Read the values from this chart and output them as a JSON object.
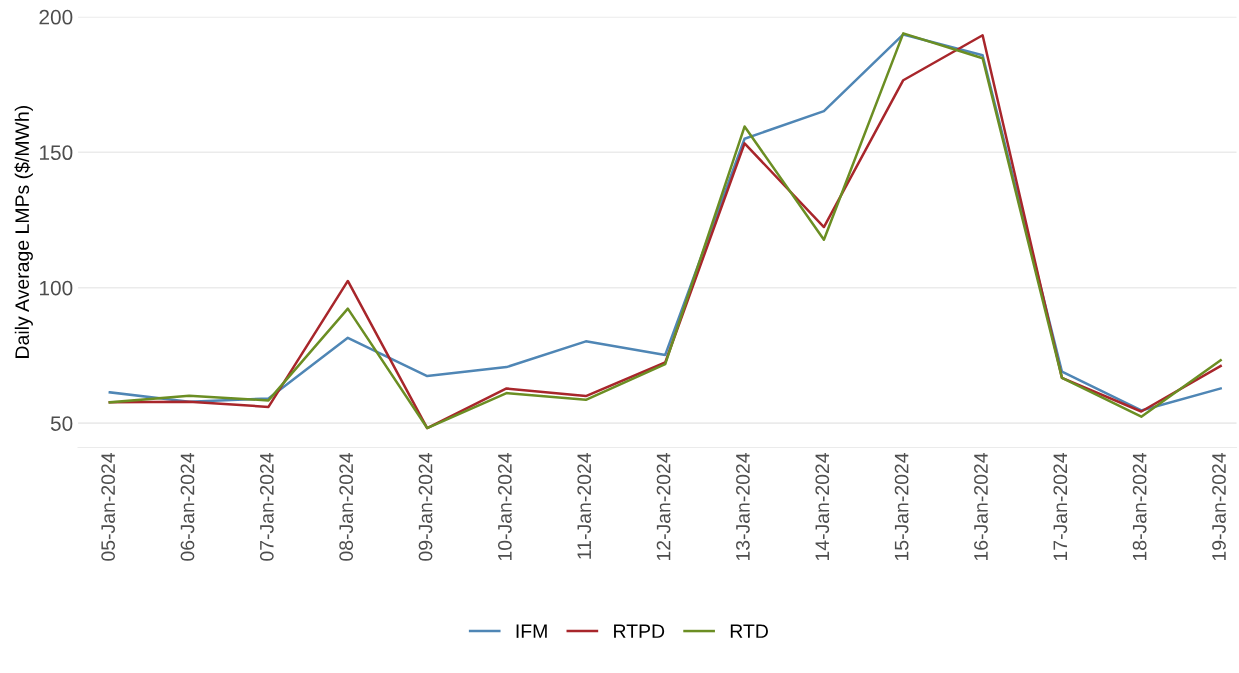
{
  "chart_data": {
    "type": "line",
    "ylabel": "Daily Average LMPs ($/MWh)",
    "categories": [
      "05-Jan-2024",
      "06-Jan-2024",
      "07-Jan-2024",
      "08-Jan-2024",
      "09-Jan-2024",
      "10-Jan-2024",
      "11-Jan-2024",
      "12-Jan-2024",
      "13-Jan-2024",
      "14-Jan-2024",
      "15-Jan-2024",
      "16-Jan-2024",
      "17-Jan-2024",
      "18-Jan-2024",
      "19-Jan-2024"
    ],
    "series": [
      {
        "name": "IFM",
        "color": "#4f86b5",
        "values": [
          61.4,
          57.9,
          59.1,
          81.5,
          67.4,
          70.7,
          80.2,
          75.2,
          155,
          165.2,
          193.5,
          185.8,
          69,
          54.7,
          62.8
        ]
      },
      {
        "name": "RTPD",
        "color": "#a8262b",
        "values": [
          57.7,
          57.9,
          56,
          102.5,
          48.2,
          62.8,
          60,
          72.4,
          153.3,
          122.4,
          176.6,
          193.2,
          66.7,
          54.3,
          71.1
        ]
      },
      {
        "name": "RTD",
        "color": "#6b8e23",
        "values": [
          57.7,
          60.1,
          58.4,
          92.3,
          48.2,
          61.1,
          58.6,
          71.8,
          159.5,
          117.7,
          193.9,
          184.7,
          66.7,
          52.4,
          73.2
        ]
      }
    ],
    "ylim": [
      41,
      200
    ],
    "yticks": [
      50,
      100,
      150,
      200
    ],
    "grid": "y",
    "legend": "bottom",
    "marker": "none",
    "line_style": "solid"
  }
}
